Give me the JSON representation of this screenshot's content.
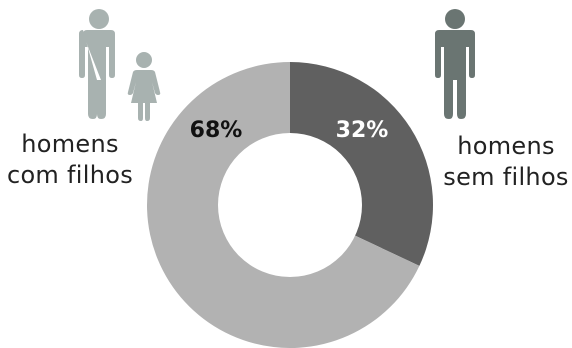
{
  "colors": {
    "with_children": "#b2b2b2",
    "without_children": "#606060",
    "hole": "#ffffff",
    "icon_with_children": "#a8b2b0",
    "icon_without_children": "#6a7572",
    "pct_with_children_text": "#111111",
    "pct_without_children_text": "#ffffff"
  },
  "icons": {
    "left": [
      "man-icon",
      "girl-icon"
    ],
    "right": [
      "man-icon"
    ]
  },
  "labels": {
    "left": {
      "line1": "homens",
      "line2": "com filhos"
    },
    "right": {
      "line1": "homens",
      "line2": "sem filhos"
    }
  },
  "chart_data": {
    "type": "pie",
    "donut": true,
    "title": "",
    "slices": [
      {
        "label": "homens sem filhos",
        "value": 32,
        "display": "32%"
      },
      {
        "label": "homens com filhos",
        "value": 68,
        "display": "68%"
      }
    ],
    "start_angle_deg": 0,
    "direction": "clockwise"
  }
}
